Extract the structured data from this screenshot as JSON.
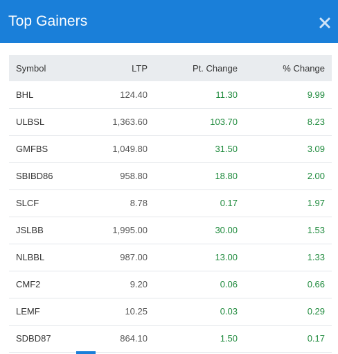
{
  "header": {
    "title": "Top Gainers",
    "close_icon": "close-icon"
  },
  "table": {
    "columns": [
      "Symbol",
      "LTP",
      "Pt. Change",
      "% Change"
    ],
    "rows": [
      {
        "symbol": "BHL",
        "ltp": "124.40",
        "pt_change": "11.30",
        "pct_change": "9.99"
      },
      {
        "symbol": "ULBSL",
        "ltp": "1,363.60",
        "pt_change": "103.70",
        "pct_change": "8.23"
      },
      {
        "symbol": "GMFBS",
        "ltp": "1,049.80",
        "pt_change": "31.50",
        "pct_change": "3.09"
      },
      {
        "symbol": "SBIBD86",
        "ltp": "958.80",
        "pt_change": "18.80",
        "pct_change": "2.00"
      },
      {
        "symbol": "SLCF",
        "ltp": "8.78",
        "pt_change": "0.17",
        "pct_change": "1.97"
      },
      {
        "symbol": "JSLBB",
        "ltp": "1,995.00",
        "pt_change": "30.00",
        "pct_change": "1.53"
      },
      {
        "symbol": "NLBBL",
        "ltp": "987.00",
        "pt_change": "13.00",
        "pct_change": "1.33"
      },
      {
        "symbol": "CMF2",
        "ltp": "9.20",
        "pt_change": "0.06",
        "pct_change": "0.66"
      },
      {
        "symbol": "LEMF",
        "ltp": "10.25",
        "pt_change": "0.03",
        "pct_change": "0.29"
      },
      {
        "symbol": "SDBD87",
        "ltp": "864.10",
        "pt_change": "1.50",
        "pct_change": "0.17"
      }
    ]
  },
  "colors": {
    "header_bg": "#1a7fd9",
    "gain": "#1e8a3c",
    "table_header_bg": "#e9ecef"
  }
}
